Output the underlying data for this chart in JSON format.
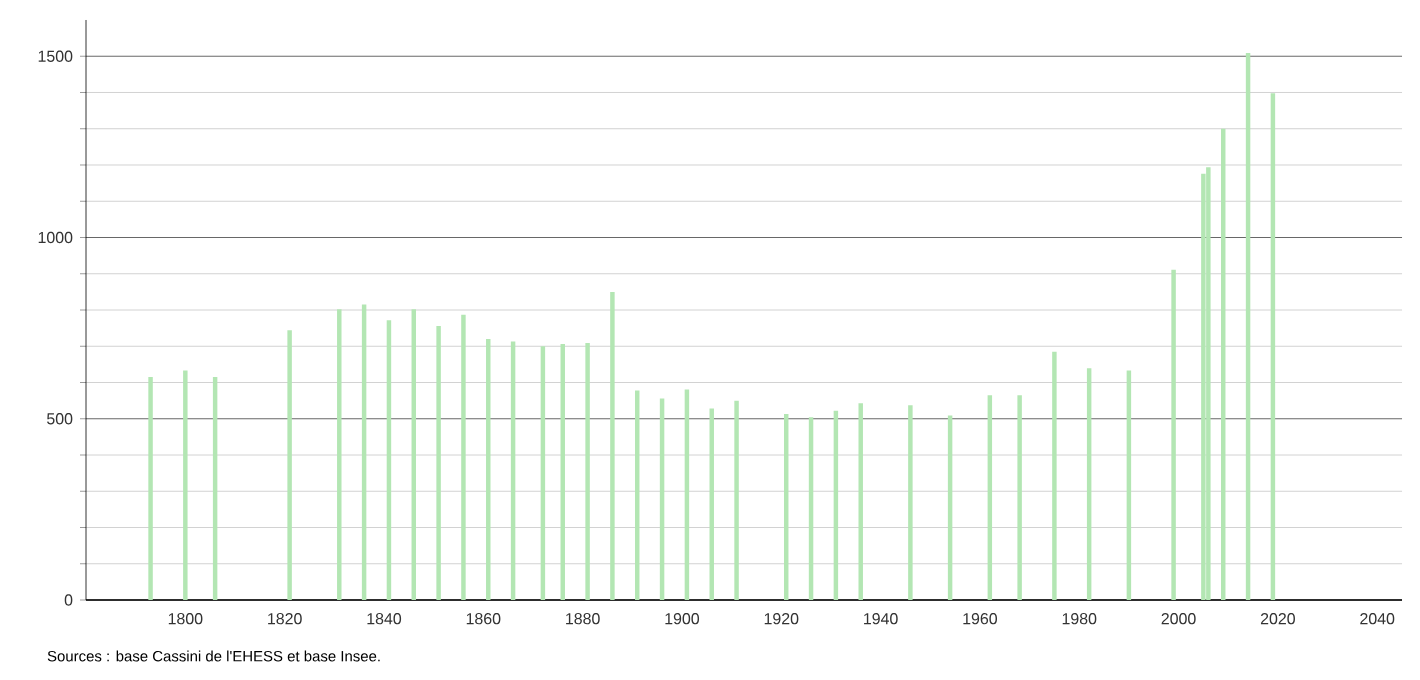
{
  "chart_data": {
    "type": "bar",
    "color": "#b3e6b3",
    "x": [
      1793,
      1800,
      1806,
      1821,
      1831,
      1836,
      1841,
      1846,
      1851,
      1856,
      1861,
      1866,
      1872,
      1876,
      1881,
      1886,
      1891,
      1896,
      1901,
      1906,
      1911,
      1921,
      1926,
      1931,
      1936,
      1946,
      1954,
      1962,
      1968,
      1975,
      1982,
      1990,
      1999,
      2005,
      2006,
      2009,
      2014,
      2019
    ],
    "values": [
      615,
      633,
      615,
      744,
      802,
      815,
      772,
      802,
      756,
      787,
      720,
      713,
      700,
      706,
      709,
      850,
      578,
      556,
      581,
      528,
      550,
      513,
      504,
      522,
      543,
      537,
      509,
      565,
      565,
      685,
      639,
      633,
      911,
      1176,
      1194,
      1300,
      1509,
      1398
    ],
    "xlim": [
      1780,
      2045
    ],
    "ylim": [
      0,
      1600
    ],
    "xticks": [
      1800,
      1820,
      1840,
      1860,
      1880,
      1900,
      1920,
      1940,
      1960,
      1980,
      2000,
      2020,
      2040
    ],
    "yticks": [
      0,
      500,
      1000,
      1500
    ],
    "grid": "y",
    "annotations": [
      "Sources : base Cassini de l'EHESS et base Insee."
    ]
  }
}
